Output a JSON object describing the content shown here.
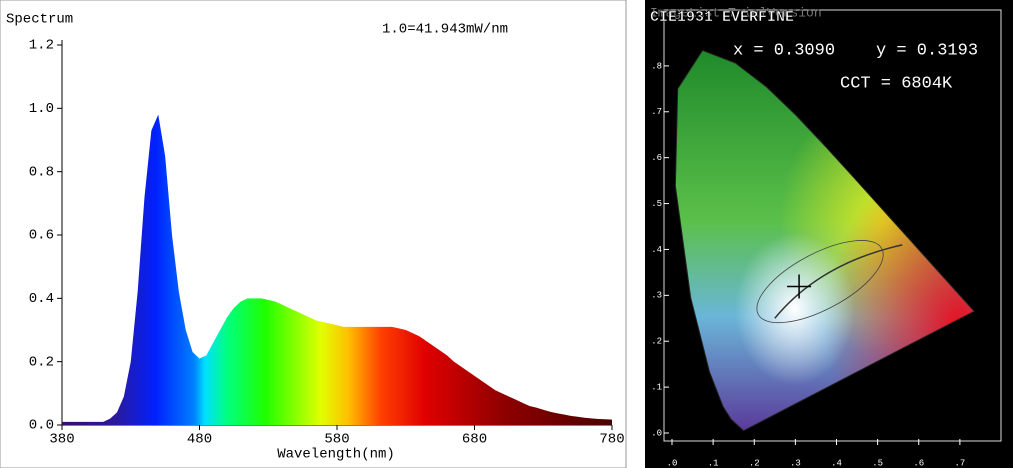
{
  "chart_data": [
    {
      "type": "area",
      "title": "Spectrum",
      "subtitle": "1.0=41.943mW/nm",
      "x_label": "Wavelength(nm)",
      "x": [
        380,
        385,
        390,
        395,
        400,
        405,
        410,
        415,
        420,
        425,
        430,
        435,
        440,
        445,
        450,
        455,
        460,
        465,
        470,
        475,
        480,
        485,
        490,
        495,
        500,
        505,
        510,
        515,
        520,
        525,
        530,
        535,
        540,
        545,
        550,
        555,
        560,
        565,
        570,
        575,
        580,
        585,
        590,
        595,
        600,
        605,
        610,
        615,
        620,
        625,
        630,
        635,
        640,
        645,
        650,
        655,
        660,
        665,
        670,
        675,
        680,
        685,
        690,
        695,
        700,
        705,
        710,
        715,
        720,
        725,
        730,
        735,
        740,
        745,
        750,
        755,
        760,
        765,
        770,
        775,
        780
      ],
      "values": [
        0.01,
        0.01,
        0.01,
        0.01,
        0.01,
        0.01,
        0.01,
        0.02,
        0.04,
        0.09,
        0.2,
        0.42,
        0.72,
        0.93,
        0.98,
        0.85,
        0.6,
        0.42,
        0.3,
        0.23,
        0.21,
        0.22,
        0.26,
        0.3,
        0.34,
        0.37,
        0.39,
        0.4,
        0.4,
        0.4,
        0.395,
        0.39,
        0.38,
        0.37,
        0.36,
        0.35,
        0.34,
        0.33,
        0.325,
        0.32,
        0.315,
        0.31,
        0.31,
        0.31,
        0.31,
        0.31,
        0.31,
        0.31,
        0.31,
        0.305,
        0.3,
        0.29,
        0.28,
        0.265,
        0.25,
        0.235,
        0.22,
        0.2,
        0.185,
        0.17,
        0.155,
        0.14,
        0.125,
        0.11,
        0.1,
        0.09,
        0.08,
        0.07,
        0.06,
        0.055,
        0.048,
        0.042,
        0.037,
        0.033,
        0.029,
        0.026,
        0.023,
        0.021,
        0.019,
        0.018,
        0.017
      ],
      "xlim": [
        380,
        780
      ],
      "xticks": [
        380,
        480,
        580,
        680,
        780
      ],
      "ylim": [
        0,
        1.2
      ],
      "yticks": [
        {
          "value": 0,
          "label": "0.0"
        },
        0.2,
        0.4,
        0.6,
        0.8,
        {
          "value": 1,
          "label": "1.0"
        },
        1.2
      ],
      "grid": false
    },
    {
      "type": "scatter",
      "title": "CIE1931 EVERFINE",
      "watermark": "ImageList TrialVersion",
      "annotations": [
        "x = 0.3090",
        "y = 0.3193",
        "CCT = 6804K"
      ],
      "x": [
        0.309
      ],
      "values": [
        0.3193
      ],
      "color": "#000000",
      "xlim": [
        0,
        0.8
      ],
      "ylim": [
        0,
        0.9
      ],
      "xticks": [
        {
          "value": 0,
          "label": ".0"
        },
        {
          "value": 0.1,
          "label": ".1"
        },
        {
          "value": 0.2,
          "label": ".2"
        },
        {
          "value": 0.3,
          "label": ".3"
        },
        {
          "value": 0.4,
          "label": ".4"
        },
        {
          "value": 0.5,
          "label": ".5"
        },
        {
          "value": 0.6,
          "label": ".6"
        },
        {
          "value": 0.7,
          "label": ".7"
        }
      ],
      "yticks": [
        {
          "value": 0,
          "label": ".0"
        },
        {
          "value": 0.1,
          "label": ".1"
        },
        {
          "value": 0.2,
          "label": ".2"
        },
        {
          "value": 0.3,
          "label": ".3"
        },
        {
          "value": 0.4,
          "label": ".4"
        },
        {
          "value": 0.5,
          "label": ".5"
        },
        {
          "value": 0.6,
          "label": ".6"
        },
        {
          "value": 0.7,
          "label": ".7"
        },
        {
          "value": 0.8,
          "label": ".8"
        }
      ]
    }
  ]
}
